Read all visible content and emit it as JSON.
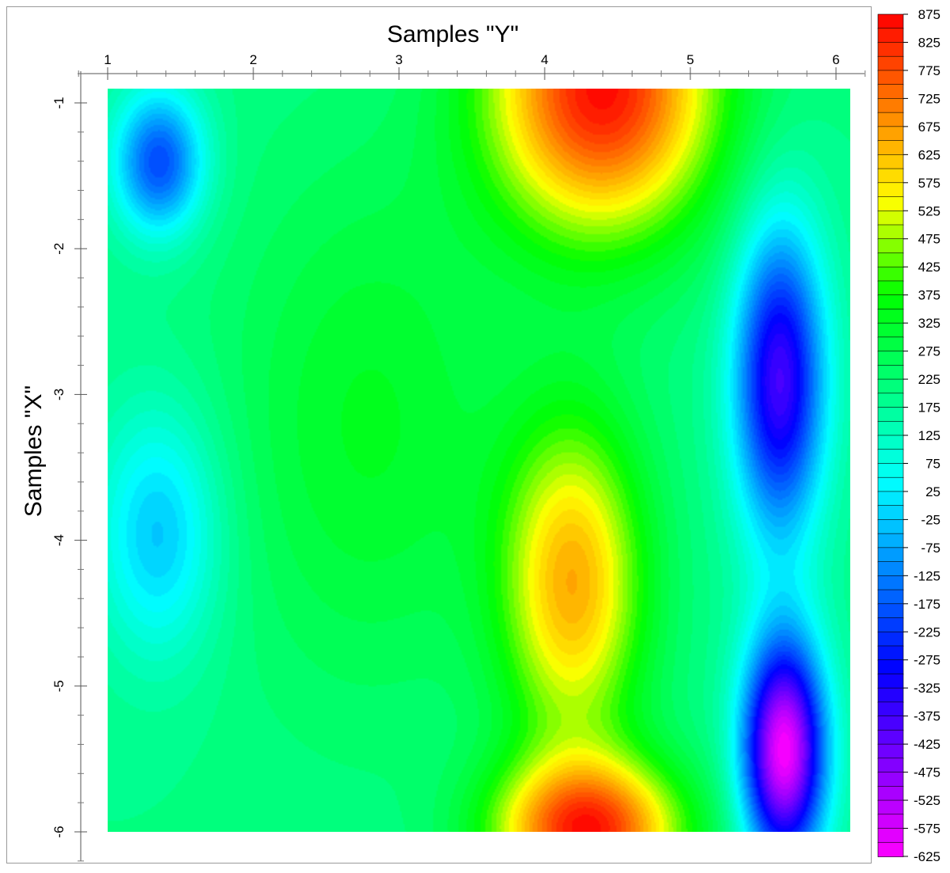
{
  "chart_data": {
    "type": "heatmap",
    "subtype": "filled-contour",
    "title": "Samples \"Y\"",
    "xlabel": "Samples \"Y\"",
    "ylabel": "Samples \"X\"",
    "x_axis_position": "top",
    "xlim": [
      0.8,
      6.2
    ],
    "ylim": [
      -6.2,
      -0.9
    ],
    "data_extent": {
      "x": [
        1.0,
        6.1
      ],
      "y": [
        -6.0,
        -0.9
      ]
    },
    "x_ticks": [
      1,
      2,
      3,
      4,
      5,
      6
    ],
    "y_ticks": [
      -1,
      -2,
      -3,
      -4,
      -5,
      -6
    ],
    "grid": false,
    "legend": "right colorbar",
    "colorbar": {
      "min": -625,
      "max": 875,
      "step": 25,
      "labels": [
        875,
        825,
        775,
        725,
        675,
        625,
        575,
        525,
        475,
        425,
        375,
        325,
        275,
        225,
        175,
        125,
        75,
        25,
        -25,
        -75,
        -125,
        -175,
        -225,
        -275,
        -325,
        -375,
        -425,
        -475,
        -525,
        -575,
        -625
      ],
      "colors": [
        "#ff00ff",
        "#8000ff",
        "#0000ff",
        "#0080ff",
        "#00ffff",
        "#00ff80",
        "#00ff00",
        "#ffff00",
        "#ff8000",
        "#ff0000"
      ]
    },
    "features": [
      {
        "x": 1.35,
        "y": -1.4,
        "value": -200,
        "sx": 0.22,
        "sy": 0.35
      },
      {
        "x": 1.35,
        "y": -3.95,
        "value": -40,
        "sx": 0.3,
        "sy": 0.6
      },
      {
        "x": 4.4,
        "y": -0.9,
        "value": 860,
        "sx": 0.55,
        "sy": 0.7
      },
      {
        "x": 4.2,
        "y": -4.3,
        "value": 640,
        "sx": 0.35,
        "sy": 0.8
      },
      {
        "x": 4.3,
        "y": -6.0,
        "value": 820,
        "sx": 0.45,
        "sy": 0.35
      },
      {
        "x": 5.62,
        "y": -2.9,
        "value": -380,
        "sx": 0.22,
        "sy": 0.75
      },
      {
        "x": 5.65,
        "y": -5.45,
        "value": -620,
        "sx": 0.2,
        "sy": 0.55
      },
      {
        "x": 2.8,
        "y": -3.2,
        "value": 330,
        "sx": 0.7,
        "sy": 1.3
      }
    ],
    "base_value": 200
  }
}
